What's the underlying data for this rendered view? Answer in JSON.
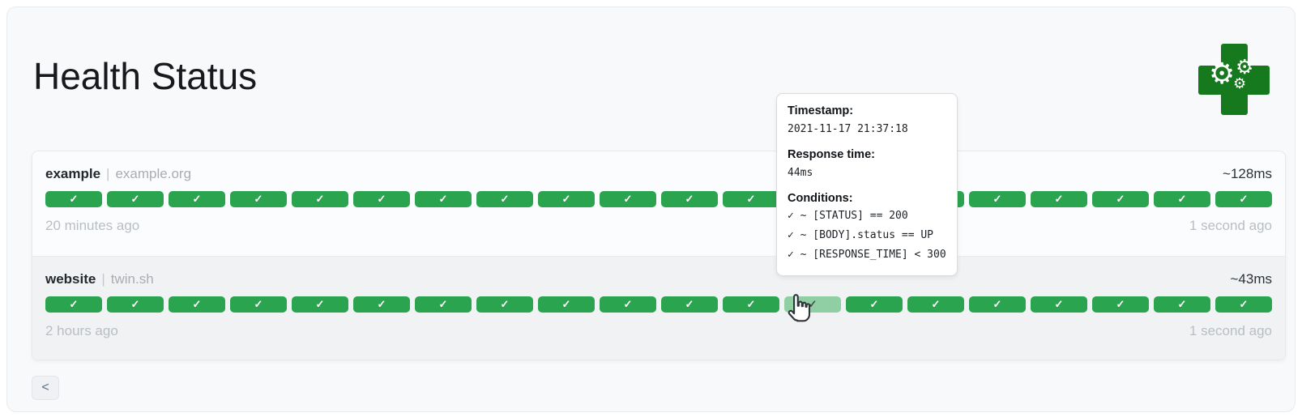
{
  "page": {
    "title": "Health Status"
  },
  "logo": {
    "gear_glyph": "⚙"
  },
  "board": {
    "services": [
      {
        "name": "example",
        "separator": "|",
        "host": "example.org",
        "avg_response_time": "~128ms",
        "range_start_label": "20 minutes ago",
        "range_end_label": "1 second ago",
        "check_glyph": "✓",
        "statuses": [
          "up",
          "up",
          "up",
          "up",
          "up",
          "up",
          "up",
          "up",
          "up",
          "up",
          "up",
          "up",
          "up",
          "up",
          "up",
          "up",
          "up",
          "up",
          "up",
          "up"
        ],
        "hovered_index": null
      },
      {
        "name": "website",
        "separator": "|",
        "host": "twin.sh",
        "avg_response_time": "~43ms",
        "range_start_label": "2 hours ago",
        "range_end_label": "1 second ago",
        "check_glyph": "✓",
        "statuses": [
          "up",
          "up",
          "up",
          "up",
          "up",
          "up",
          "up",
          "up",
          "up",
          "up",
          "up",
          "up",
          "up",
          "up",
          "up",
          "up",
          "up",
          "up",
          "up",
          "up"
        ],
        "hovered_index": 12
      }
    ]
  },
  "tooltip": {
    "timestamp_label": "Timestamp:",
    "timestamp_value": "2021-11-17 21:37:18",
    "response_time_label": "Response time:",
    "response_time_value": "44ms",
    "conditions_label": "Conditions:",
    "conditions": [
      "✓ ~ [STATUS] == 200",
      "✓ ~ [BODY].status == UP",
      "✓ ~ [RESPONSE_TIME] < 300"
    ]
  },
  "pagination": {
    "previous_label": "<"
  },
  "colors": {
    "success": "#2aa44f",
    "success_hovered": "#8fcfa3",
    "logo_green": "#17791d"
  }
}
